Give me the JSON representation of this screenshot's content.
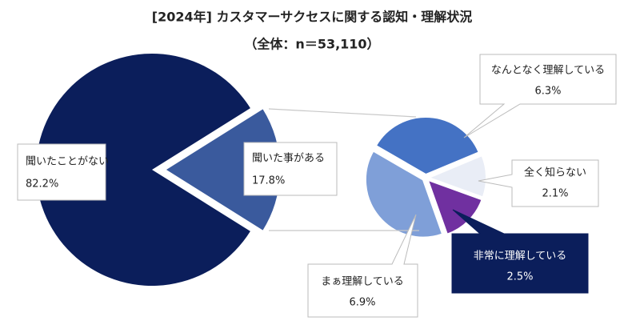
{
  "chart_data": {
    "type": "pie-of-pie",
    "title": "[2024年] カスタマーサクセスに関する認知・理解状況",
    "subtitle": "（全体：n＝53,110）",
    "categories": [
      "聞いたことがない",
      "聞いた事がある"
    ],
    "values": [
      82.2,
      17.8
    ],
    "value_labels": [
      "82.2%",
      "17.8%"
    ],
    "colors": [
      "#0b1e5b",
      "#3a5a9d"
    ],
    "breakdown": {
      "categories": [
        "なんとなく理解している",
        "全く知らない",
        "非常に理解している",
        "まぁ理解している"
      ],
      "values": [
        6.3,
        2.1,
        2.5,
        6.9
      ],
      "value_labels": [
        "6.3%",
        "2.1%",
        "2.5%",
        "6.9%"
      ],
      "colors": [
        "#4472c4",
        "#e9edf6",
        "#7030a0",
        "#7f9fd8"
      ]
    }
  }
}
